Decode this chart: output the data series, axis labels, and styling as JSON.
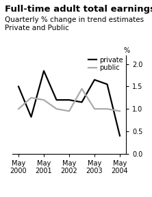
{
  "title": "Full-time adult total earnings",
  "subtitle1": "Quarterly % change in trend estimates",
  "subtitle2": "Private and Public",
  "x_labels": [
    "May\n2000",
    "May\n2001",
    "May\n2002",
    "May\n2003",
    "May\n2004"
  ],
  "x_positions": [
    0,
    2,
    4,
    6,
    8
  ],
  "private_x": [
    0,
    1,
    2,
    3,
    4,
    5,
    6,
    7,
    8
  ],
  "private_y": [
    1.5,
    0.82,
    1.85,
    1.2,
    1.2,
    1.15,
    1.65,
    1.55,
    0.4
  ],
  "public_x": [
    0,
    1,
    2,
    3,
    4,
    5,
    6,
    7,
    8
  ],
  "public_y": [
    1.0,
    1.25,
    1.2,
    1.0,
    0.95,
    1.45,
    1.0,
    1.0,
    0.95
  ],
  "private_color": "#000000",
  "public_color": "#aaaaaa",
  "ylim": [
    0.0,
    2.2
  ],
  "yticks": [
    0.0,
    0.5,
    1.0,
    1.5,
    2.0
  ],
  "ylabel": "%",
  "background_color": "#ffffff",
  "title_fontsize": 9.5,
  "subtitle_fontsize": 7.5,
  "legend_labels": [
    "private",
    "public"
  ],
  "linewidth_private": 1.6,
  "linewidth_public": 1.6,
  "tick_fontsize": 7,
  "legend_fontsize": 7
}
